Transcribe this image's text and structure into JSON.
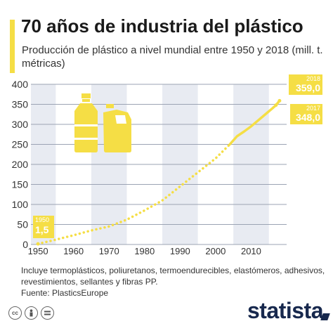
{
  "header": {
    "title": "70 años de industria del plástico",
    "subtitle": "Producción de plástico a nivel mundial entre 1950 y 2018 (mill. t. métricas)"
  },
  "colors": {
    "accent": "#f5de45",
    "band": "#e8ebf2",
    "grid": "#9ba3b3",
    "brand": "#17284d"
  },
  "chart_data": {
    "type": "line",
    "title": "70 años de industria del plástico",
    "subtitle": "Producción de plástico a nivel mundial entre 1950 y 2018 (mill. t. métricas)",
    "x_ticks": [
      "1950",
      "1960",
      "1970",
      "1980",
      "1990",
      "2000",
      "2010"
    ],
    "y_ticks": [
      "0",
      "50",
      "100",
      "150",
      "200",
      "250",
      "300",
      "350",
      "400"
    ],
    "xlim": [
      1948,
      2020
    ],
    "ylim": [
      0,
      400
    ],
    "grid": true,
    "series": [
      {
        "style": "dotted",
        "x": [
          1950,
          1955,
          1960,
          1965,
          1970,
          1975,
          1980,
          1985,
          1990,
          1995,
          2000,
          2004
        ],
        "y": [
          1.5,
          12,
          23,
          35,
          45,
          62,
          85,
          110,
          145,
          180,
          215,
          250
        ]
      },
      {
        "style": "solid",
        "x": [
          2004,
          2006,
          2008,
          2010,
          2012,
          2014,
          2016,
          2017,
          2018
        ],
        "y": [
          250,
          270,
          282,
          295,
          310,
          325,
          340,
          348,
          359
        ]
      }
    ],
    "annotations": [
      {
        "x": 1950,
        "y": 1.5,
        "year": "1950",
        "value": "1,5"
      },
      {
        "x": 2017,
        "y": 348,
        "year": "2017",
        "value": "348,0"
      },
      {
        "x": 2018,
        "y": 359,
        "year": "2018",
        "value": "359,0"
      }
    ]
  },
  "notes": {
    "line1": "Incluye termoplásticos, poliuretanos, termoendurecibles, elastómeros, adhesivos,",
    "line2": "revestimientos, sellantes y fibras PP.",
    "source": "Fuente: PlasticsEurope"
  },
  "footer": {
    "brand": "statista",
    "icons": [
      "cc-icon",
      "person-icon",
      "equal-icon"
    ]
  }
}
